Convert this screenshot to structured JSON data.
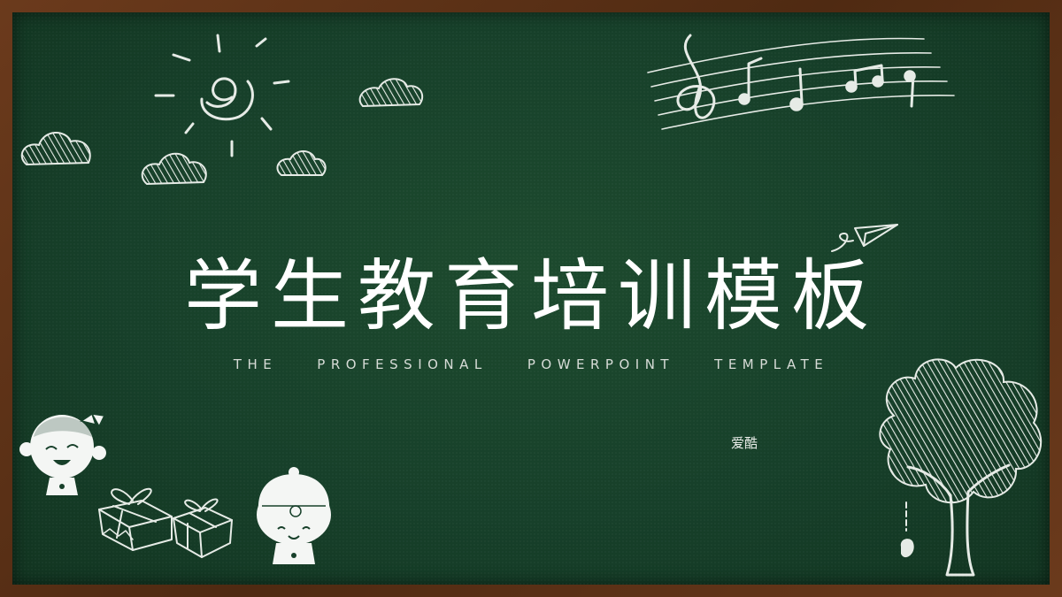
{
  "slide": {
    "title": "学生教育培训模板",
    "subtitle": "THE    PROFESSIONAL    POWERPOINT    TEMPLATE",
    "author": "爱酷"
  },
  "colors": {
    "board": "#17402a",
    "frame": "#5a3218",
    "chalk": "#e6ebe6"
  },
  "icons": [
    "sun-icon",
    "cloud-icon",
    "music-notes-icon",
    "paper-plane-icon",
    "tree-icon",
    "girl-doll-icon",
    "boy-doll-icon",
    "gift-box-icon"
  ]
}
